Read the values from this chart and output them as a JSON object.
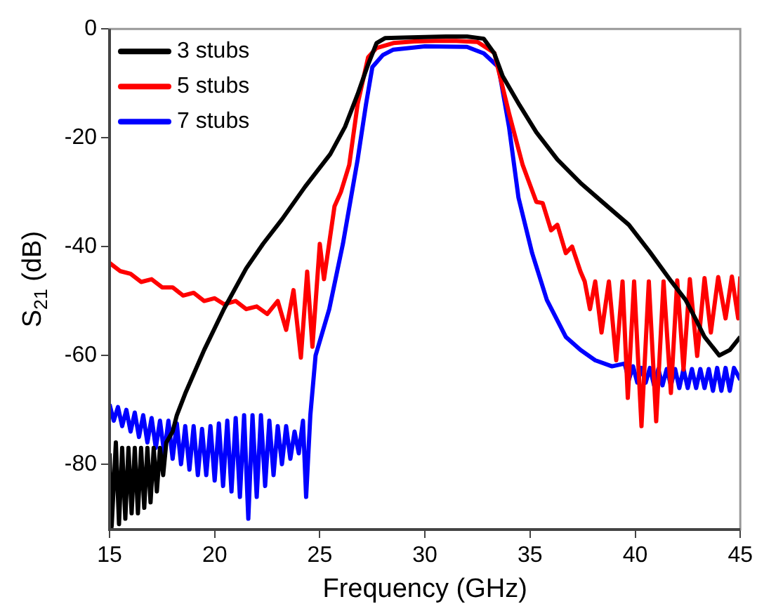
{
  "chart_data": {
    "type": "line",
    "xlabel": "Frequency (GHz)",
    "ylabel": "S$_{21}$ (dB)",
    "xlim": [
      15,
      45
    ],
    "ylim": [
      -92,
      0
    ],
    "xticks": [
      15,
      20,
      25,
      30,
      35,
      40,
      45
    ],
    "yticks": [
      0,
      -20,
      -40,
      -60,
      -80
    ],
    "grid": false,
    "legend": "top left",
    "marker": "none",
    "line_style": "solid",
    "series": [
      {
        "name": "3 stubs",
        "color": "#000000",
        "x": [
          15.0,
          15.1,
          15.3,
          15.45,
          15.6,
          15.75,
          15.9,
          16.05,
          16.2,
          16.35,
          16.5,
          16.65,
          16.8,
          16.95,
          17.1,
          17.25,
          17.4,
          17.55,
          17.7,
          18.0,
          18.2,
          18.6,
          19.5,
          20.45,
          21.5,
          22.3,
          23.2,
          24.3,
          25.5,
          26.2,
          26.8,
          27.3,
          27.7,
          28.1,
          29,
          30,
          31,
          32,
          32.8,
          33.3,
          33.7,
          34.5,
          35.3,
          36.3,
          37.4,
          38.5,
          39.7,
          40.7,
          41.7,
          42.4,
          42.9,
          43.3,
          44.0,
          44.5,
          45.0
        ],
        "values": [
          -78,
          -91.5,
          -76,
          -91,
          -77,
          -90,
          -77,
          -89,
          -77,
          -89,
          -77,
          -88,
          -77,
          -87,
          -77,
          -85,
          -77,
          -82,
          -76,
          -74,
          -71,
          -67,
          -59,
          -51.4,
          -44,
          -39.5,
          -35,
          -29,
          -23,
          -18,
          -12,
          -6.5,
          -2.6,
          -1.7,
          -1.6,
          -1.5,
          -1.4,
          -1.4,
          -1.8,
          -4.5,
          -8.7,
          -14,
          -19,
          -24,
          -28.3,
          -32,
          -36,
          -41,
          -46.3,
          -49.8,
          -53.5,
          -56.6,
          -60,
          -59,
          -56.6
        ]
      },
      {
        "name": "5 stubs",
        "color": "#ff0000",
        "x": [
          15,
          15.5,
          16,
          16.5,
          17,
          17.5,
          18,
          18.5,
          19,
          19.5,
          20,
          20.45,
          21,
          21.5,
          22,
          22.5,
          23.0,
          23.4,
          23.75,
          24.1,
          24.4,
          24.65,
          25.0,
          25.2,
          25.7,
          26.0,
          26.4,
          26.8,
          27.3,
          27.7,
          28.5,
          29.5,
          30.5,
          31.5,
          32.5,
          33.3,
          34.0,
          34.65,
          35.3,
          35.6,
          36.0,
          36.3,
          36.7,
          37.0,
          37.4,
          37.6,
          37.85,
          38.1,
          38.4,
          38.75,
          39.1,
          39.4,
          39.65,
          39.95,
          40.3,
          40.65,
          41.0,
          41.35,
          41.7,
          42.0,
          42.3,
          42.6,
          42.95,
          43.3,
          43.6,
          43.95,
          44.3,
          44.6,
          44.9,
          45.0
        ],
        "values": [
          -43,
          -44.5,
          -45,
          -46.5,
          -46,
          -47.5,
          -47.5,
          -49,
          -48.5,
          -50,
          -49.5,
          -50.6,
          -50,
          -51.5,
          -51,
          -52.4,
          -50,
          -55.3,
          -48,
          -60.4,
          -44.6,
          -58.4,
          -39.5,
          -46,
          -32.6,
          -30,
          -25,
          -13.8,
          -5.2,
          -3.5,
          -2.6,
          -2.3,
          -2.2,
          -2.2,
          -2.4,
          -4.4,
          -15.5,
          -25,
          -31.8,
          -32,
          -37,
          -36,
          -41.2,
          -40,
          -44.6,
          -46.4,
          -51.5,
          -46.4,
          -55.8,
          -46.4,
          -60.9,
          -46.4,
          -67.8,
          -46.4,
          -73,
          -46.4,
          -72.1,
          -46.4,
          -66.9,
          -46.2,
          -62.6,
          -46,
          -60.1,
          -45.8,
          -55.8,
          -45.6,
          -53.2,
          -45.5,
          -53.2,
          -45.5
        ]
      },
      {
        "name": "7 stubs",
        "color": "#0000ff",
        "x": [
          15.0,
          15.2,
          15.4,
          15.6,
          15.8,
          16.0,
          16.2,
          16.4,
          16.6,
          16.8,
          17.0,
          17.2,
          17.4,
          17.6,
          17.8,
          18.0,
          18.2,
          18.4,
          18.6,
          18.8,
          19.0,
          19.2,
          19.4,
          19.6,
          19.8,
          20.0,
          20.2,
          20.4,
          20.6,
          20.8,
          21.0,
          21.2,
          21.4,
          21.6,
          21.8,
          22.0,
          22.2,
          22.4,
          22.6,
          22.8,
          23.0,
          23.2,
          23.4,
          23.6,
          23.8,
          24.0,
          24.2,
          24.35,
          24.55,
          24.8,
          25.45,
          26.1,
          26.8,
          27.2,
          27.5,
          28.0,
          28.5,
          30,
          32,
          32.8,
          33.5,
          34.0,
          34.45,
          35.1,
          35.8,
          36.7,
          37.4,
          38.1,
          38.9,
          39.5,
          39.7,
          39.9,
          40.1,
          40.3,
          40.5,
          40.7,
          40.9,
          41.1,
          41.3,
          41.5,
          41.7,
          41.9,
          42.1,
          42.3,
          42.5,
          42.7,
          42.9,
          43.1,
          43.3,
          43.5,
          43.7,
          43.9,
          44.1,
          44.3,
          44.5,
          44.7,
          45.0
        ],
        "values": [
          -69,
          -72,
          -69.5,
          -73,
          -70,
          -74,
          -70.5,
          -75,
          -71,
          -76,
          -71.5,
          -77,
          -72,
          -78,
          -72,
          -79,
          -72.5,
          -80,
          -73,
          -81,
          -73,
          -82,
          -73.5,
          -82,
          -73,
          -83,
          -72.5,
          -84,
          -72,
          -85,
          -71.5,
          -86,
          -71,
          -90,
          -71,
          -86,
          -71,
          -84,
          -72,
          -82,
          -73,
          -80,
          -73,
          -79,
          -74,
          -78,
          -72,
          -86,
          -71,
          -60,
          -51.5,
          -39.5,
          -24,
          -13.8,
          -7,
          -4.8,
          -3.8,
          -3.2,
          -3.3,
          -4.5,
          -7,
          -18,
          -31,
          -41.2,
          -49.8,
          -56.6,
          -59,
          -60.9,
          -62,
          -61.5,
          -64.5,
          -62,
          -65,
          -62.3,
          -65,
          -62.3,
          -65.5,
          -62.5,
          -65.5,
          -62.5,
          -65.5,
          -62.5,
          -66,
          -62.5,
          -66,
          -62.5,
          -66,
          -62.5,
          -66,
          -62.5,
          -66.5,
          -62.3,
          -66.5,
          -62.3,
          -66.5,
          -62.3,
          -64.5
        ]
      }
    ]
  }
}
